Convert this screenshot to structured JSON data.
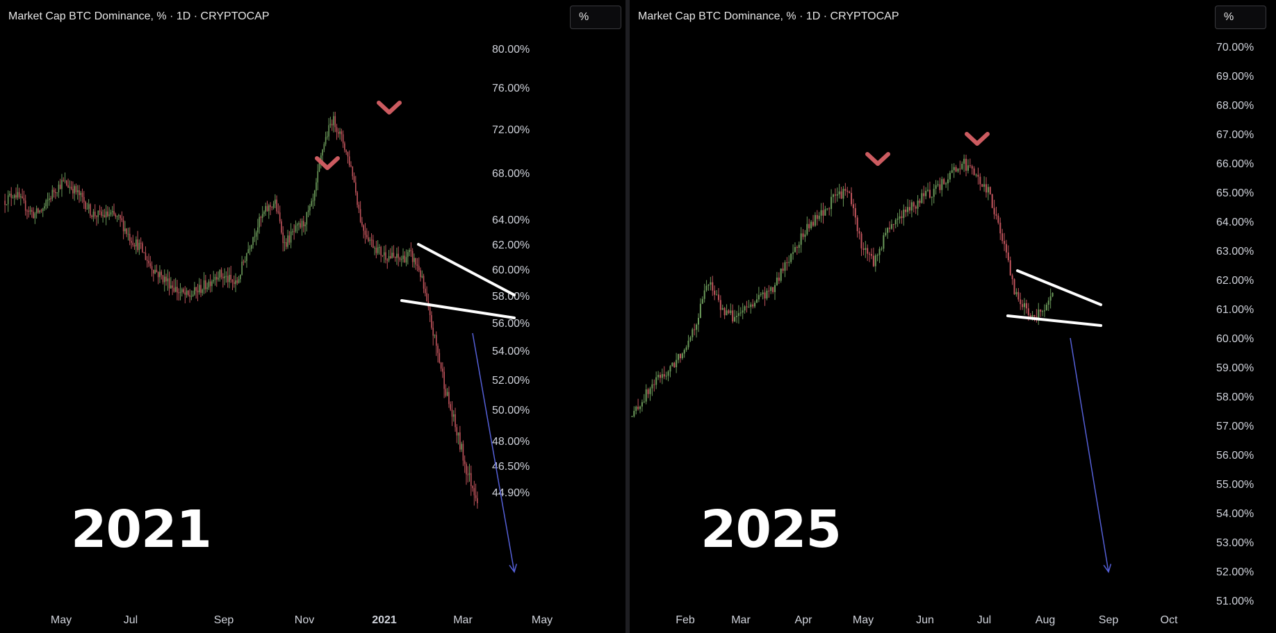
{
  "colors": {
    "background": "#000000",
    "up": "#6b9a5a",
    "down": "#c0545c",
    "marker": "#cc5b60",
    "trendline": "#ffffff",
    "arrow": "#5560d8"
  },
  "chart_data": [
    {
      "type": "candlestick",
      "title": "Market Cap BTC Dominance, % · 1D · CRYPTOCAP",
      "unit_label": "%",
      "year_label": "2021",
      "y_ticks": [
        "80.00%",
        "76.00%",
        "72.00%",
        "68.00%",
        "64.00%",
        "62.00%",
        "60.00%",
        "58.00%",
        "56.00%",
        "54.00%",
        "52.00%",
        "50.00%",
        "48.00%",
        "46.50%",
        "44.90%"
      ],
      "x_ticks": [
        {
          "label": "May",
          "bold": false
        },
        {
          "label": "Jul",
          "bold": false
        },
        {
          "label": "Sep",
          "bold": false
        },
        {
          "label": "Nov",
          "bold": false
        },
        {
          "label": "2021",
          "bold": true
        },
        {
          "label": "Mar",
          "bold": false
        },
        {
          "label": "May",
          "bold": false
        }
      ],
      "ylim": [
        44.0,
        80.5
      ],
      "series_close": [
        {
          "x": "Apr",
          "y": 65.6
        },
        {
          "x": "Apr",
          "y": 66.3
        },
        {
          "x": "Apr",
          "y": 65.2
        },
        {
          "x": "May",
          "y": 64.4
        },
        {
          "x": "May",
          "y": 64.9
        },
        {
          "x": "May",
          "y": 66.4
        },
        {
          "x": "May",
          "y": 67.2
        },
        {
          "x": "Jun",
          "y": 66.7
        },
        {
          "x": "Jun",
          "y": 65.8
        },
        {
          "x": "Jun",
          "y": 64.5
        },
        {
          "x": "Jun",
          "y": 64.3
        },
        {
          "x": "Jul",
          "y": 64.4
        },
        {
          "x": "Jul",
          "y": 63.9
        },
        {
          "x": "Jul",
          "y": 62.5
        },
        {
          "x": "Aug",
          "y": 61.8
        },
        {
          "x": "Aug",
          "y": 60.4
        },
        {
          "x": "Aug",
          "y": 59.6
        },
        {
          "x": "Aug",
          "y": 59.0
        },
        {
          "x": "Sep",
          "y": 58.3
        },
        {
          "x": "Sep",
          "y": 57.9
        },
        {
          "x": "Sep",
          "y": 58.4
        },
        {
          "x": "Sep",
          "y": 58.9
        },
        {
          "x": "Oct",
          "y": 59.7
        },
        {
          "x": "Oct",
          "y": 59.3
        },
        {
          "x": "Oct",
          "y": 58.8
        },
        {
          "x": "Oct",
          "y": 61.2
        },
        {
          "x": "Nov",
          "y": 63.2
        },
        {
          "x": "Nov",
          "y": 64.7
        },
        {
          "x": "Nov",
          "y": 65.5
        },
        {
          "x": "Nov",
          "y": 62.0
        },
        {
          "x": "Dec",
          "y": 63.0
        },
        {
          "x": "Dec",
          "y": 63.7
        },
        {
          "x": "Dec",
          "y": 65.5
        },
        {
          "x": "Dec",
          "y": 70.5
        },
        {
          "x": "Jan",
          "y": 73.0
        },
        {
          "x": "Jan",
          "y": 71.0
        },
        {
          "x": "Jan",
          "y": 68.2
        },
        {
          "x": "Feb",
          "y": 63.5
        },
        {
          "x": "Feb",
          "y": 62.2
        },
        {
          "x": "Feb",
          "y": 61.3
        },
        {
          "x": "Mar",
          "y": 61.0
        },
        {
          "x": "Mar",
          "y": 60.8
        },
        {
          "x": "Mar",
          "y": 61.2
        },
        {
          "x": "Apr",
          "y": 60.0
        },
        {
          "x": "Apr",
          "y": 56.5
        },
        {
          "x": "Apr",
          "y": 53.5
        },
        {
          "x": "Apr",
          "y": 50.5
        },
        {
          "x": "May",
          "y": 48.2
        },
        {
          "x": "May",
          "y": 46.0
        },
        {
          "x": "May",
          "y": 44.6
        }
      ],
      "annotations": [
        "peak marker",
        "peak marker",
        "falling wedge trendlines",
        "downward arrow"
      ]
    },
    {
      "type": "candlestick",
      "title": "Market Cap BTC Dominance, % · 1D · CRYPTOCAP",
      "unit_label": "%",
      "year_label": "2025",
      "y_ticks": [
        "70.00%",
        "69.00%",
        "68.00%",
        "67.00%",
        "66.00%",
        "65.00%",
        "64.00%",
        "63.00%",
        "62.00%",
        "61.00%",
        "60.00%",
        "59.00%",
        "58.00%",
        "57.00%",
        "56.00%",
        "55.00%",
        "54.00%",
        "53.00%",
        "52.00%",
        "51.00%"
      ],
      "x_ticks": [
        {
          "label": "Feb",
          "bold": false
        },
        {
          "label": "Mar",
          "bold": false
        },
        {
          "label": "Apr",
          "bold": false
        },
        {
          "label": "May",
          "bold": false
        },
        {
          "label": "Jun",
          "bold": false
        },
        {
          "label": "Jul",
          "bold": false
        },
        {
          "label": "Aug",
          "bold": false
        },
        {
          "label": "Sep",
          "bold": false
        },
        {
          "label": "Oct",
          "bold": false
        }
      ],
      "ylim": [
        50.6,
        70.6
      ],
      "series_close": [
        {
          "x": "Jan",
          "y": 57.3
        },
        {
          "x": "Jan",
          "y": 58.0
        },
        {
          "x": "Jan",
          "y": 58.6
        },
        {
          "x": "Jan",
          "y": 58.9
        },
        {
          "x": "Feb",
          "y": 59.6
        },
        {
          "x": "Feb",
          "y": 60.5
        },
        {
          "x": "Feb",
          "y": 62.0
        },
        {
          "x": "Feb",
          "y": 61.0
        },
        {
          "x": "Mar",
          "y": 60.7
        },
        {
          "x": "Mar",
          "y": 61.0
        },
        {
          "x": "Mar",
          "y": 61.4
        },
        {
          "x": "Mar",
          "y": 61.6
        },
        {
          "x": "Apr",
          "y": 62.5
        },
        {
          "x": "Apr",
          "y": 63.3
        },
        {
          "x": "Apr",
          "y": 63.9
        },
        {
          "x": "Apr",
          "y": 64.3
        },
        {
          "x": "May",
          "y": 64.9
        },
        {
          "x": "May",
          "y": 65.0
        },
        {
          "x": "May",
          "y": 63.2
        },
        {
          "x": "May",
          "y": 62.6
        },
        {
          "x": "May",
          "y": 63.7
        },
        {
          "x": "May",
          "y": 64.2
        },
        {
          "x": "Jun",
          "y": 64.5
        },
        {
          "x": "Jun",
          "y": 64.9
        },
        {
          "x": "Jun",
          "y": 65.1
        },
        {
          "x": "Jun",
          "y": 65.7
        },
        {
          "x": "Jul",
          "y": 66.0
        },
        {
          "x": "Jul",
          "y": 65.5
        },
        {
          "x": "Jul",
          "y": 65.0
        },
        {
          "x": "Jul",
          "y": 63.5
        },
        {
          "x": "Jul",
          "y": 61.6
        },
        {
          "x": "Jul",
          "y": 60.9
        },
        {
          "x": "Aug",
          "y": 60.8
        },
        {
          "x": "Aug",
          "y": 61.4
        }
      ],
      "annotations": [
        "peak marker",
        "peak marker",
        "falling wedge trendlines",
        "downward arrow"
      ]
    }
  ]
}
